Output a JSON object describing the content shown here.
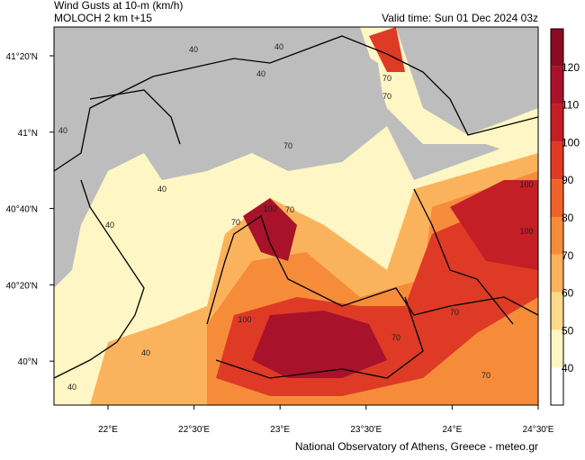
{
  "header": {
    "title": "Wind Gusts at 10-m (km/h)",
    "model": "MOLOCH 2 km t+15",
    "valid_time": "Valid time: Sun 01 Dec 2024 03z"
  },
  "axes": {
    "x_ticks": [
      "22°E",
      "22°30'E",
      "23°E",
      "23°30'E",
      "24°E",
      "24°30'E"
    ],
    "y_ticks": [
      "41°20'N",
      "41°N",
      "40°40'N",
      "40°20'N",
      "40°N"
    ]
  },
  "colorbar": {
    "labels": [
      "120",
      "110",
      "100",
      "90",
      "80",
      "70",
      "60",
      "50",
      "40"
    ],
    "colors": [
      "#8c0a24",
      "#a8122a",
      "#c41e26",
      "#de3a26",
      "#ef6228",
      "#f68c3a",
      "#fab35c",
      "#fdd98a",
      "#fef6c4",
      "#ffffff"
    ]
  },
  "contour_labels": [
    "40",
    "40",
    "40",
    "70",
    "70",
    "40",
    "100",
    "70",
    "100",
    "70",
    "100",
    "70",
    "100",
    "70",
    "40",
    "40",
    "70",
    "70",
    "40",
    "40"
  ],
  "footer": "National Observatory of Athens, Greece - meteo.gr"
}
